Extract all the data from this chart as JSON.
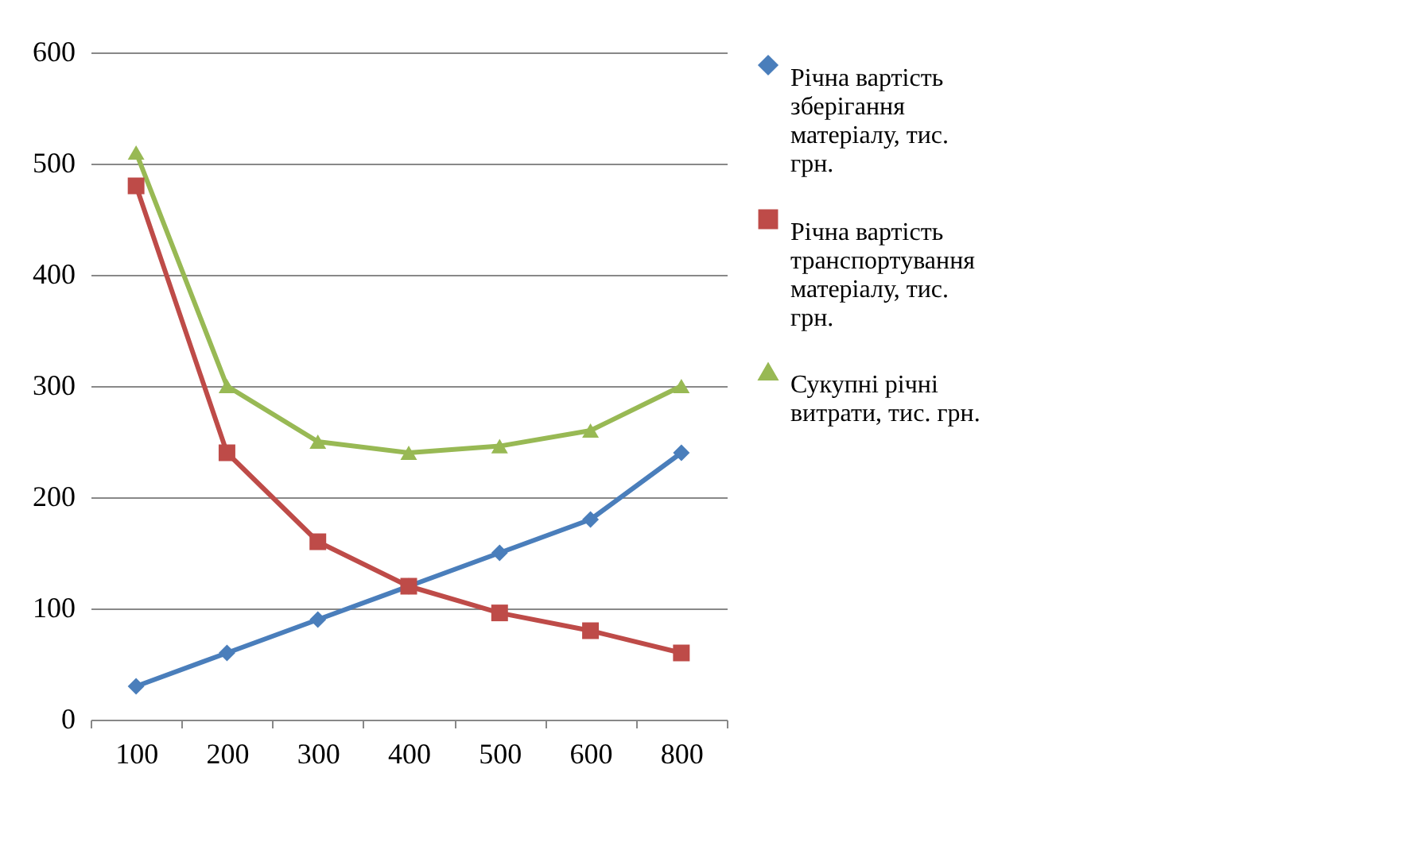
{
  "chart_data": {
    "type": "line",
    "categories": [
      "100",
      "200",
      "300",
      "400",
      "500",
      "600",
      "800"
    ],
    "series": [
      {
        "name": "Річна вартість зберігання матеріалу, тис. грн.",
        "color": "#4a7ebb",
        "marker": "diamond",
        "values": [
          30,
          60,
          90,
          120,
          150,
          180,
          240
        ]
      },
      {
        "name": "Річна вартість транспортування матеріалу, тис. грн.",
        "color": "#be4b48",
        "marker": "square",
        "values": [
          480,
          240,
          160,
          120,
          96,
          80,
          60
        ]
      },
      {
        "name": "Сукупні річні витрати, тис. грн.",
        "color": "#98b954",
        "marker": "triangle",
        "values": [
          510,
          300,
          250,
          240,
          246,
          260,
          300
        ]
      }
    ],
    "ylim": [
      0,
      600
    ],
    "yticks": [
      0,
      100,
      200,
      300,
      400,
      500,
      600
    ],
    "grid": "y",
    "legend": "right",
    "line_style": "solid"
  }
}
